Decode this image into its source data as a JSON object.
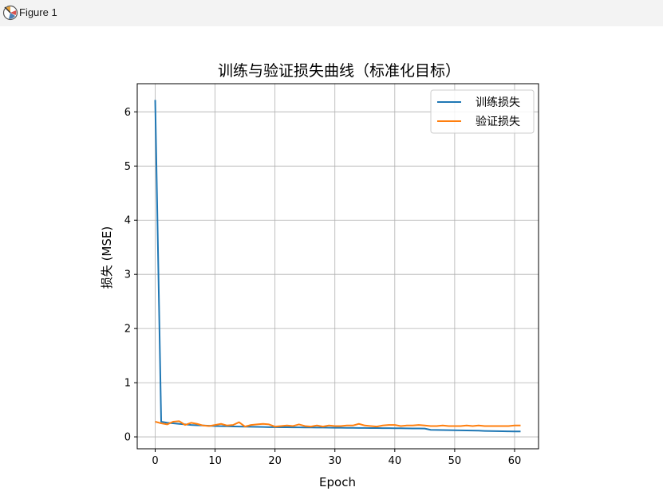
{
  "window": {
    "title": "Figure 1",
    "icon": "matplotlib-figure-icon"
  },
  "chart_data": {
    "type": "line",
    "title": "训练与验证损失曲线（标准化目标）",
    "xlabel": "Epoch",
    "ylabel": "损失 (MSE)",
    "xlim": [
      -3,
      64
    ],
    "ylim": [
      -0.22,
      6.52
    ],
    "xticks": [
      0,
      10,
      20,
      30,
      40,
      50,
      60
    ],
    "yticks": [
      0,
      1,
      2,
      3,
      4,
      5,
      6
    ],
    "grid": true,
    "legend_position": "top-right",
    "series": [
      {
        "name": "训练损失",
        "color": "#1f77b4",
        "x": [
          0,
          1,
          2,
          3,
          4,
          5,
          6,
          7,
          8,
          9,
          10,
          11,
          12,
          13,
          14,
          15,
          16,
          17,
          18,
          19,
          20,
          21,
          22,
          23,
          24,
          25,
          26,
          27,
          28,
          29,
          30,
          31,
          32,
          33,
          34,
          35,
          36,
          37,
          38,
          39,
          40,
          41,
          42,
          43,
          44,
          45,
          46,
          47,
          48,
          49,
          50,
          51,
          52,
          53,
          54,
          55,
          56,
          57,
          58,
          59,
          60,
          61
        ],
        "values": [
          6.22,
          0.28,
          0.26,
          0.25,
          0.24,
          0.23,
          0.22,
          0.215,
          0.21,
          0.205,
          0.2,
          0.198,
          0.195,
          0.192,
          0.19,
          0.188,
          0.186,
          0.184,
          0.182,
          0.18,
          0.179,
          0.178,
          0.177,
          0.176,
          0.175,
          0.174,
          0.173,
          0.172,
          0.171,
          0.17,
          0.169,
          0.168,
          0.167,
          0.166,
          0.165,
          0.164,
          0.163,
          0.162,
          0.161,
          0.16,
          0.159,
          0.158,
          0.157,
          0.156,
          0.155,
          0.154,
          0.13,
          0.128,
          0.126,
          0.124,
          0.122,
          0.12,
          0.118,
          0.116,
          0.114,
          0.11,
          0.108,
          0.106,
          0.104,
          0.102,
          0.1,
          0.1
        ]
      },
      {
        "name": "验证损失",
        "color": "#ff7f0e",
        "x": [
          0,
          1,
          2,
          3,
          4,
          5,
          6,
          7,
          8,
          9,
          10,
          11,
          12,
          13,
          14,
          15,
          16,
          17,
          18,
          19,
          20,
          21,
          22,
          23,
          24,
          25,
          26,
          27,
          28,
          29,
          30,
          31,
          32,
          33,
          34,
          35,
          36,
          37,
          38,
          39,
          40,
          41,
          42,
          43,
          44,
          45,
          46,
          47,
          48,
          49,
          50,
          51,
          52,
          53,
          54,
          55,
          56,
          57,
          58,
          59,
          60,
          61
        ],
        "values": [
          0.28,
          0.25,
          0.23,
          0.28,
          0.29,
          0.22,
          0.26,
          0.24,
          0.21,
          0.2,
          0.22,
          0.24,
          0.21,
          0.22,
          0.27,
          0.19,
          0.22,
          0.23,
          0.24,
          0.23,
          0.19,
          0.2,
          0.21,
          0.2,
          0.23,
          0.2,
          0.19,
          0.21,
          0.19,
          0.21,
          0.2,
          0.2,
          0.21,
          0.21,
          0.24,
          0.21,
          0.2,
          0.19,
          0.21,
          0.22,
          0.22,
          0.2,
          0.21,
          0.21,
          0.22,
          0.21,
          0.2,
          0.2,
          0.21,
          0.2,
          0.2,
          0.2,
          0.21,
          0.2,
          0.21,
          0.2,
          0.2,
          0.2,
          0.2,
          0.2,
          0.21,
          0.21
        ]
      }
    ]
  }
}
